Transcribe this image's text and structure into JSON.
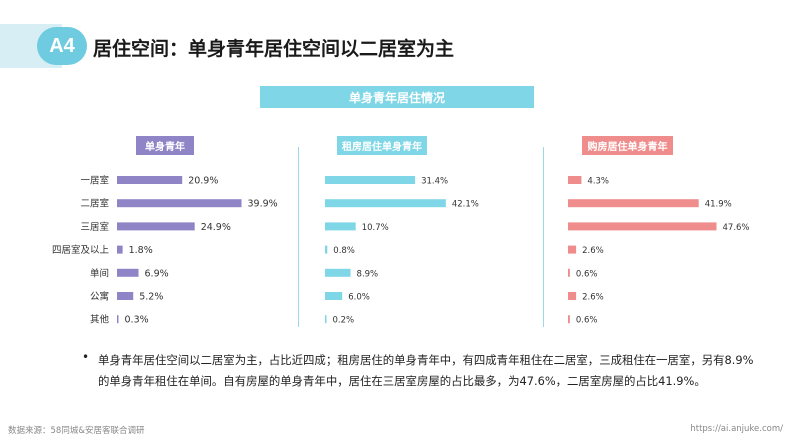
{
  "header": {
    "badge": "A4",
    "title": "居住空间：单身青年居住空间以二居室为主"
  },
  "chart_title": "单身青年居住情况",
  "colors": {
    "purple": "#8f84c6",
    "blue": "#7fd6e6",
    "pink": "#ef8d8d"
  },
  "chart_data": [
    {
      "type": "bar",
      "title": "单身青年",
      "categories": [
        "一居室",
        "二居室",
        "三居室",
        "四居室及以上",
        "单间",
        "公寓",
        "其他"
      ],
      "values": [
        20.9,
        39.9,
        24.9,
        1.8,
        6.9,
        5.2,
        0.3
      ],
      "labels": [
        "20.9%",
        "39.9%",
        "24.9%",
        "1.8%",
        "6.9%",
        "5.2%",
        "0.3%"
      ],
      "orientation": "horizontal"
    },
    {
      "type": "bar",
      "title": "租房居住单身青年",
      "categories": [
        "一居室",
        "二居室",
        "三居室",
        "四居室及以上",
        "单间",
        "公寓",
        "其他"
      ],
      "values": [
        31.4,
        42.1,
        10.7,
        0.8,
        8.9,
        6.0,
        0.2
      ],
      "labels": [
        "31.4%",
        "42.1%",
        "10.7%",
        "0.8%",
        "8.9%",
        "6.0%",
        "0.2%"
      ],
      "orientation": "horizontal"
    },
    {
      "type": "bar",
      "title": "购房居住单身青年",
      "categories": [
        "一居室",
        "二居室",
        "三居室",
        "四居室及以上",
        "单间",
        "公寓",
        "其他"
      ],
      "values": [
        4.3,
        41.9,
        47.6,
        2.6,
        0.6,
        2.6,
        0.6
      ],
      "labels": [
        "4.3%",
        "41.9%",
        "47.6%",
        "2.6%",
        "0.6%",
        "2.6%",
        "0.6%"
      ],
      "orientation": "horizontal"
    }
  ],
  "note": {
    "bullet": "•",
    "line1": "单身青年居住空间以二居室为主，占比近四成；租房居住的单身青年中，有四成青年租住在二居室，三成租住在一居室，另有8.9%",
    "line2": "的单身青年租住在单间。自有房屋的单身青年中，居住在三居室房屋的占比最多，为47.6%，二居室房屋的占比41.9%。"
  },
  "footer": {
    "source": "数据来源：58同城&安居客联合调研",
    "url": "https://ai.anjuke.com/"
  }
}
